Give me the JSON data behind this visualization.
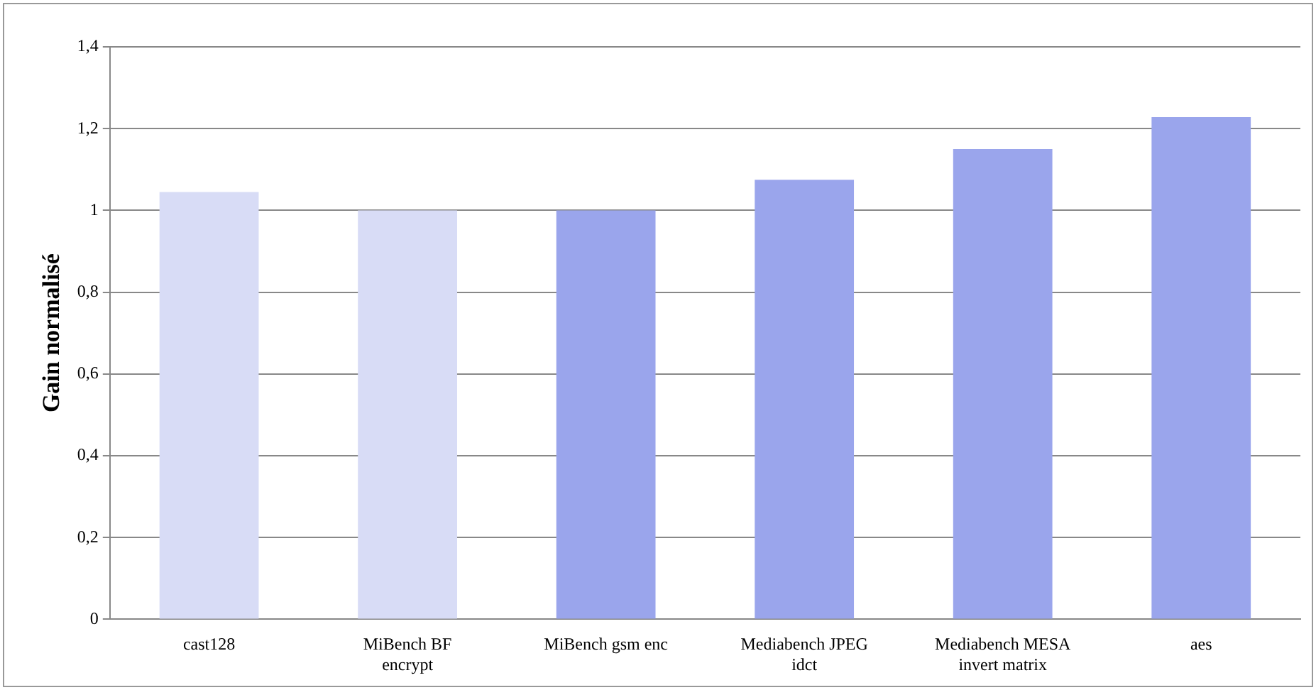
{
  "chart_data": {
    "type": "bar",
    "ylabel": "Gain normalisé",
    "categories": [
      "cast128",
      "MiBench BF encrypt",
      "MiBench gsm enc",
      "Mediabench JPEG idct",
      "Mediabench MESA invert matrix",
      "aes"
    ],
    "values": [
      1.045,
      1.0,
      1.0,
      1.075,
      1.15,
      1.228
    ],
    "colors": [
      "#d8dcf6",
      "#d8dcf6",
      "#9aa5ec",
      "#9aa5ec",
      "#9aa5ec",
      "#9aa5ec"
    ],
    "ylim": [
      0,
      1.4
    ],
    "yticks": [
      0,
      {
        "value": 0.2,
        "label": "0,2"
      },
      {
        "value": 0.4,
        "label": "0,4"
      },
      {
        "value": 0.6,
        "label": "0,6"
      },
      {
        "value": 0.8,
        "label": "0,8"
      },
      1,
      {
        "value": 1.2,
        "label": "1,2"
      },
      {
        "value": 1.4,
        "label": "1,4"
      }
    ],
    "grid": "y",
    "legend": false
  }
}
